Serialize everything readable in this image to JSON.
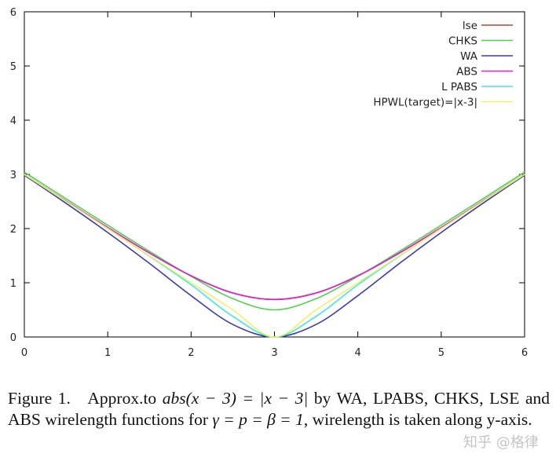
{
  "chart_data": {
    "type": "line",
    "title": "",
    "xlabel": "",
    "ylabel": "",
    "xlim": [
      0,
      6
    ],
    "ylim": [
      0,
      6
    ],
    "x_ticks": [
      "0",
      "1",
      "2",
      "3",
      "4",
      "5",
      "6"
    ],
    "y_ticks": [
      "0",
      "1",
      "2",
      "3",
      "4",
      "5",
      "6"
    ],
    "grid": false,
    "legend_position": "top-right",
    "x": [
      0,
      0.5,
      1,
      1.5,
      2,
      2.5,
      3,
      3.5,
      4,
      4.5,
      5,
      5.5,
      6
    ],
    "series": [
      {
        "name": "lse",
        "color": "#b5473a",
        "values": [
          3.002,
          2.507,
          2.018,
          1.549,
          1.127,
          0.813,
          0.693,
          0.813,
          1.127,
          1.549,
          2.018,
          2.507,
          3.002
        ]
      },
      {
        "name": "CHKS",
        "color": "#4ad44a",
        "values": [
          3.041,
          2.55,
          2.062,
          1.581,
          1.118,
          0.707,
          0.5,
          0.707,
          1.118,
          1.581,
          2.062,
          2.55,
          3.041
        ]
      },
      {
        "name": "WA",
        "color": "#3a3ab8",
        "values": [
          2.985,
          2.466,
          1.928,
          1.358,
          0.762,
          0.231,
          0,
          0.231,
          0.762,
          1.358,
          1.928,
          2.466,
          2.985
        ]
      },
      {
        "name": "ABS",
        "color": "#e01ed8",
        "values": [
          3.0,
          2.51,
          2.02,
          1.55,
          1.13,
          0.81,
          0.69,
          0.81,
          1.13,
          1.55,
          2.02,
          2.51,
          3.0
        ]
      },
      {
        "name": "LPABS",
        "color": "#3fe8e8",
        "values": [
          3.0,
          2.5,
          1.999,
          1.493,
          0.964,
          0.381,
          0,
          0.381,
          0.964,
          1.493,
          1.999,
          2.5,
          3.0
        ]
      },
      {
        "name": "HPWL(target)=|x-3|",
        "color": "#f2f25a",
        "values": [
          3,
          2.5,
          2,
          1.5,
          1,
          0.5,
          0,
          0.5,
          1,
          1.5,
          2,
          2.5,
          3
        ]
      }
    ]
  },
  "legend_labels": [
    "lse",
    "CHKS",
    "WA",
    "ABS",
    "L PABS",
    "HPWL(target)=|x-3|"
  ],
  "caption": {
    "label": "Figure 1.",
    "text_1": "Approx.to ",
    "math_1": "abs(x − 3) = |x − 3|",
    "text_2": " by WA, LPABS, CHKS, LSE and ABS wirelength functions for ",
    "math_2": "γ = p = β = 1",
    "text_3": ", wirelength is taken along y-axis."
  },
  "watermark": "知乎 @格律"
}
